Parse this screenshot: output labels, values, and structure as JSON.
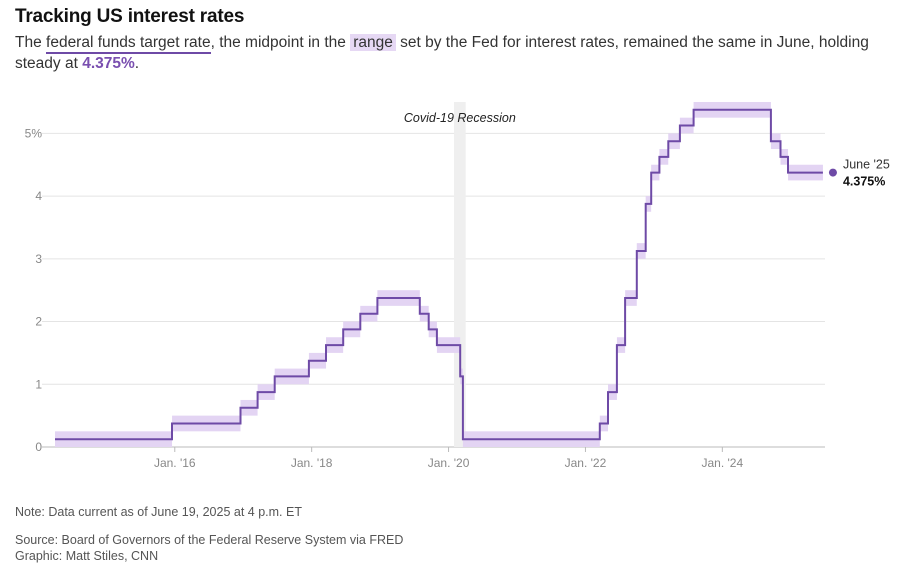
{
  "header": {
    "title": "Tracking US interest rates",
    "sub_prefix": "The ",
    "sub_term": "federal funds target rate",
    "sub_mid": ", the midpoint in the ",
    "sub_range": "range",
    "sub_rest": " set by the Fed for interest rates, remained the same in June, holding steady at ",
    "sub_value": "4.375%",
    "sub_end": "."
  },
  "footer": {
    "note": "Note: Data current as of June 19, 2025 at 4 p.m. ET",
    "source": "Source: Board of Governors of the Federal Reserve System via FRED",
    "graphic": "Graphic: Matt Stiles, CNN"
  },
  "chart_data": {
    "type": "line",
    "step": true,
    "title": "Tracking US interest rates",
    "xlabel": "",
    "ylabel": "",
    "xlim": [
      2014.25,
      2025.5
    ],
    "ylim": [
      0,
      5.5
    ],
    "grid": true,
    "colors": {
      "line": "#6e4aa6",
      "band": "#e3d4f3",
      "recession": "#efefef"
    },
    "x_ticks": [
      {
        "x": 2016.0,
        "label": "Jan. '16"
      },
      {
        "x": 2018.0,
        "label": "Jan. '18"
      },
      {
        "x": 2020.0,
        "label": "Jan. '20"
      },
      {
        "x": 2022.0,
        "label": "Jan. '22"
      },
      {
        "x": 2024.0,
        "label": "Jan. '24"
      }
    ],
    "y_ticks": [
      {
        "y": 0,
        "label": "0"
      },
      {
        "y": 1,
        "label": "1"
      },
      {
        "y": 2,
        "label": "2"
      },
      {
        "y": 3,
        "label": "3"
      },
      {
        "y": 4,
        "label": "4"
      },
      {
        "y": 5,
        "label": "5%"
      }
    ],
    "recession": {
      "label": "Covid-19 Recession",
      "start": 2020.08,
      "end": 2020.25
    },
    "series": [
      {
        "points": [
          {
            "x": 2014.25,
            "y": 0.125
          },
          {
            "x": 2015.96,
            "y": 0.375
          },
          {
            "x": 2016.96,
            "y": 0.625
          },
          {
            "x": 2017.21,
            "y": 0.875
          },
          {
            "x": 2017.46,
            "y": 1.125
          },
          {
            "x": 2017.96,
            "y": 1.375
          },
          {
            "x": 2018.21,
            "y": 1.625
          },
          {
            "x": 2018.46,
            "y": 1.875
          },
          {
            "x": 2018.71,
            "y": 2.125
          },
          {
            "x": 2018.96,
            "y": 2.375
          },
          {
            "x": 2019.58,
            "y": 2.125
          },
          {
            "x": 2019.71,
            "y": 1.875
          },
          {
            "x": 2019.83,
            "y": 1.625
          },
          {
            "x": 2020.17,
            "y": 1.125
          },
          {
            "x": 2020.21,
            "y": 0.125
          },
          {
            "x": 2022.21,
            "y": 0.375
          },
          {
            "x": 2022.33,
            "y": 0.875
          },
          {
            "x": 2022.46,
            "y": 1.625
          },
          {
            "x": 2022.58,
            "y": 2.375
          },
          {
            "x": 2022.75,
            "y": 3.125
          },
          {
            "x": 2022.88,
            "y": 3.875
          },
          {
            "x": 2022.96,
            "y": 4.375
          },
          {
            "x": 2023.08,
            "y": 4.625
          },
          {
            "x": 2023.21,
            "y": 4.875
          },
          {
            "x": 2023.38,
            "y": 5.125
          },
          {
            "x": 2023.58,
            "y": 5.375
          },
          {
            "x": 2024.71,
            "y": 4.875
          },
          {
            "x": 2024.85,
            "y": 4.625
          },
          {
            "x": 2024.96,
            "y": 4.375
          },
          {
            "x": 2025.47,
            "y": 4.375
          }
        ]
      }
    ],
    "end_label": {
      "date": "June '25",
      "value": "4.375%"
    }
  }
}
